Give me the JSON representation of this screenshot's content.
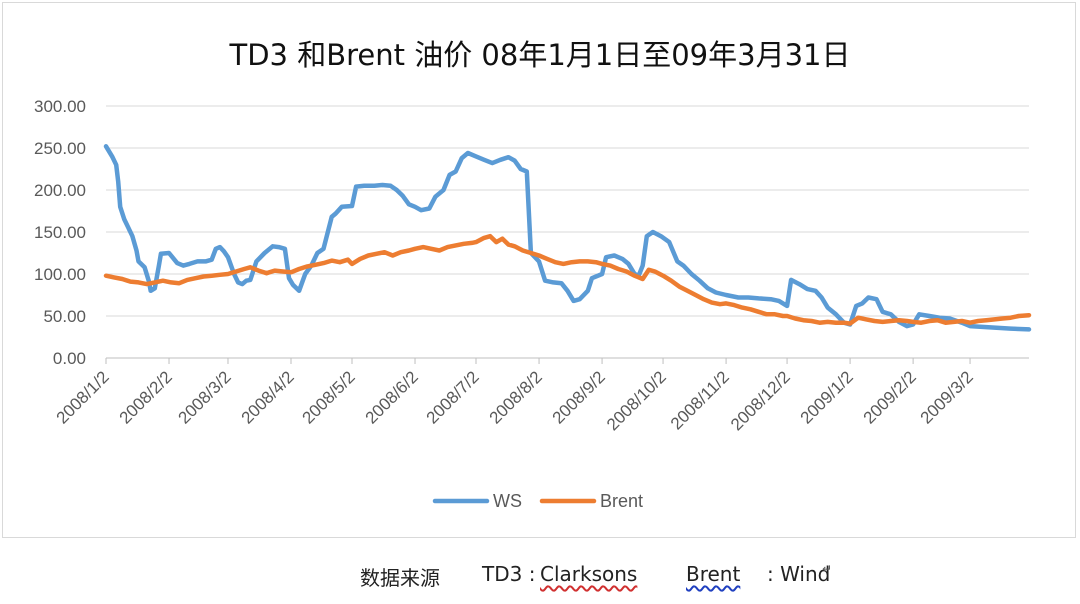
{
  "chart_data": {
    "type": "line",
    "title": "TD3 和Brent 油价 08年1月1日至09年3月31日",
    "ylim": [
      0,
      300
    ],
    "y_ticks": [
      "0.00",
      "50.00",
      "100.00",
      "150.00",
      "200.00",
      "250.00",
      "300.00"
    ],
    "x_range": [
      "2008-01-02",
      "2009-03-31"
    ],
    "x_ticks": [
      {
        "date": "2008-01-02",
        "label": "2008/1/2"
      },
      {
        "date": "2008-02-02",
        "label": "2008/2/2"
      },
      {
        "date": "2008-03-02",
        "label": "2008/3/2"
      },
      {
        "date": "2008-04-02",
        "label": "2008/4/2"
      },
      {
        "date": "2008-05-02",
        "label": "2008/5/2"
      },
      {
        "date": "2008-06-02",
        "label": "2008/6/2"
      },
      {
        "date": "2008-07-02",
        "label": "2008/7/2"
      },
      {
        "date": "2008-08-02",
        "label": "2008/8/2"
      },
      {
        "date": "2008-09-02",
        "label": "2008/9/2"
      },
      {
        "date": "2008-10-02",
        "label": "2008/10/2"
      },
      {
        "date": "2008-11-02",
        "label": "2008/11/2"
      },
      {
        "date": "2008-12-02",
        "label": "2008/12/2"
      },
      {
        "date": "2009-01-02",
        "label": "2009/1/2"
      },
      {
        "date": "2009-02-02",
        "label": "2009/2/2"
      },
      {
        "date": "2009-03-02",
        "label": "2009/3/2"
      }
    ],
    "grid": true,
    "legend_position": "bottom",
    "series": [
      {
        "name": "WS",
        "color": "#5b9bd5",
        "points": [
          [
            "2008-01-02",
            252
          ],
          [
            "2008-01-05",
            240
          ],
          [
            "2008-01-07",
            230
          ],
          [
            "2008-01-08",
            210
          ],
          [
            "2008-01-09",
            180
          ],
          [
            "2008-01-11",
            165
          ],
          [
            "2008-01-13",
            155
          ],
          [
            "2008-01-15",
            145
          ],
          [
            "2008-01-17",
            128
          ],
          [
            "2008-01-18",
            115
          ],
          [
            "2008-01-21",
            108
          ],
          [
            "2008-01-23",
            92
          ],
          [
            "2008-01-24",
            80
          ],
          [
            "2008-01-26",
            83
          ],
          [
            "2008-01-28",
            110
          ],
          [
            "2008-01-29",
            124
          ],
          [
            "2008-02-02",
            125
          ],
          [
            "2008-02-06",
            113
          ],
          [
            "2008-02-09",
            110
          ],
          [
            "2008-02-12",
            112
          ],
          [
            "2008-02-16",
            115
          ],
          [
            "2008-02-20",
            115
          ],
          [
            "2008-02-23",
            117
          ],
          [
            "2008-02-25",
            130
          ],
          [
            "2008-02-27",
            132
          ],
          [
            "2008-02-29",
            127
          ],
          [
            "2008-03-02",
            120
          ],
          [
            "2008-03-05",
            100
          ],
          [
            "2008-03-07",
            90
          ],
          [
            "2008-03-09",
            88
          ],
          [
            "2008-03-11",
            92
          ],
          [
            "2008-03-13",
            93
          ],
          [
            "2008-03-16",
            115
          ],
          [
            "2008-03-20",
            125
          ],
          [
            "2008-03-24",
            133
          ],
          [
            "2008-03-27",
            132
          ],
          [
            "2008-03-30",
            130
          ],
          [
            "2008-04-01",
            95
          ],
          [
            "2008-04-03",
            87
          ],
          [
            "2008-04-06",
            80
          ],
          [
            "2008-04-09",
            100
          ],
          [
            "2008-04-12",
            110
          ],
          [
            "2008-04-15",
            125
          ],
          [
            "2008-04-18",
            130
          ],
          [
            "2008-04-22",
            168
          ],
          [
            "2008-04-24",
            172
          ],
          [
            "2008-04-27",
            180
          ],
          [
            "2008-05-02",
            181
          ],
          [
            "2008-05-04",
            204
          ],
          [
            "2008-05-08",
            205
          ],
          [
            "2008-05-13",
            205
          ],
          [
            "2008-05-17",
            206
          ],
          [
            "2008-05-21",
            205
          ],
          [
            "2008-05-24",
            200
          ],
          [
            "2008-05-27",
            193
          ],
          [
            "2008-05-30",
            183
          ],
          [
            "2008-06-02",
            180
          ],
          [
            "2008-06-05",
            176
          ],
          [
            "2008-06-09",
            178
          ],
          [
            "2008-06-12",
            192
          ],
          [
            "2008-06-16",
            200
          ],
          [
            "2008-06-19",
            218
          ],
          [
            "2008-06-22",
            222
          ],
          [
            "2008-06-25",
            238
          ],
          [
            "2008-06-28",
            244
          ],
          [
            "2008-07-02",
            240
          ],
          [
            "2008-07-06",
            236
          ],
          [
            "2008-07-10",
            232
          ],
          [
            "2008-07-14",
            236
          ],
          [
            "2008-07-18",
            239
          ],
          [
            "2008-07-21",
            235
          ],
          [
            "2008-07-24",
            225
          ],
          [
            "2008-07-27",
            222
          ],
          [
            "2008-07-29",
            125
          ],
          [
            "2008-08-02",
            115
          ],
          [
            "2008-08-05",
            92
          ],
          [
            "2008-08-09",
            90
          ],
          [
            "2008-08-13",
            89
          ],
          [
            "2008-08-16",
            80
          ],
          [
            "2008-08-19",
            68
          ],
          [
            "2008-08-22",
            70
          ],
          [
            "2008-08-26",
            80
          ],
          [
            "2008-08-28",
            95
          ],
          [
            "2008-09-02",
            100
          ],
          [
            "2008-09-04",
            120
          ],
          [
            "2008-09-08",
            122
          ],
          [
            "2008-09-12",
            118
          ],
          [
            "2008-09-15",
            112
          ],
          [
            "2008-09-18",
            100
          ],
          [
            "2008-09-20",
            98
          ],
          [
            "2008-09-22",
            110
          ],
          [
            "2008-09-24",
            145
          ],
          [
            "2008-09-27",
            150
          ],
          [
            "2008-10-01",
            145
          ],
          [
            "2008-10-05",
            138
          ],
          [
            "2008-10-09",
            115
          ],
          [
            "2008-10-12",
            110
          ],
          [
            "2008-10-16",
            100
          ],
          [
            "2008-10-20",
            92
          ],
          [
            "2008-10-24",
            83
          ],
          [
            "2008-10-28",
            78
          ],
          [
            "2008-11-02",
            75
          ],
          [
            "2008-11-08",
            72
          ],
          [
            "2008-11-13",
            72
          ],
          [
            "2008-11-18",
            71
          ],
          [
            "2008-11-24",
            70
          ],
          [
            "2008-11-28",
            68
          ],
          [
            "2008-12-02",
            62
          ],
          [
            "2008-12-04",
            93
          ],
          [
            "2008-12-08",
            88
          ],
          [
            "2008-12-12",
            82
          ],
          [
            "2008-12-16",
            80
          ],
          [
            "2008-12-19",
            72
          ],
          [
            "2008-12-22",
            60
          ],
          [
            "2008-12-26",
            52
          ],
          [
            "2008-12-30",
            42
          ],
          [
            "2009-01-02",
            40
          ],
          [
            "2009-01-05",
            62
          ],
          [
            "2009-01-08",
            65
          ],
          [
            "2009-01-11",
            72
          ],
          [
            "2009-01-15",
            70
          ],
          [
            "2009-01-18",
            55
          ],
          [
            "2009-01-22",
            52
          ],
          [
            "2009-01-26",
            43
          ],
          [
            "2009-01-30",
            38
          ],
          [
            "2009-02-02",
            40
          ],
          [
            "2009-02-05",
            52
          ],
          [
            "2009-02-10",
            50
          ],
          [
            "2009-02-15",
            48
          ],
          [
            "2009-02-20",
            47
          ],
          [
            "2009-02-26",
            42
          ],
          [
            "2009-03-02",
            38
          ],
          [
            "2009-03-08",
            37
          ],
          [
            "2009-03-15",
            36
          ],
          [
            "2009-03-22",
            35
          ],
          [
            "2009-03-31",
            34
          ]
        ]
      },
      {
        "name": "Brent",
        "color": "#ed7d31",
        "points": [
          [
            "2008-01-02",
            98
          ],
          [
            "2008-01-06",
            96
          ],
          [
            "2008-01-10",
            94
          ],
          [
            "2008-01-14",
            91
          ],
          [
            "2008-01-18",
            90
          ],
          [
            "2008-01-22",
            88
          ],
          [
            "2008-01-26",
            90
          ],
          [
            "2008-01-30",
            92
          ],
          [
            "2008-02-03",
            90
          ],
          [
            "2008-02-07",
            89
          ],
          [
            "2008-02-11",
            93
          ],
          [
            "2008-02-15",
            95
          ],
          [
            "2008-02-19",
            97
          ],
          [
            "2008-02-23",
            98
          ],
          [
            "2008-02-27",
            99
          ],
          [
            "2008-03-02",
            100
          ],
          [
            "2008-03-06",
            103
          ],
          [
            "2008-03-10",
            106
          ],
          [
            "2008-03-13",
            108
          ],
          [
            "2008-03-17",
            104
          ],
          [
            "2008-03-21",
            101
          ],
          [
            "2008-03-25",
            104
          ],
          [
            "2008-03-29",
            103
          ],
          [
            "2008-04-02",
            102
          ],
          [
            "2008-04-06",
            106
          ],
          [
            "2008-04-10",
            109
          ],
          [
            "2008-04-14",
            111
          ],
          [
            "2008-04-18",
            113
          ],
          [
            "2008-04-22",
            116
          ],
          [
            "2008-04-26",
            114
          ],
          [
            "2008-04-30",
            117
          ],
          [
            "2008-05-02",
            112
          ],
          [
            "2008-05-06",
            118
          ],
          [
            "2008-05-10",
            122
          ],
          [
            "2008-05-14",
            124
          ],
          [
            "2008-05-18",
            126
          ],
          [
            "2008-05-22",
            122
          ],
          [
            "2008-05-26",
            126
          ],
          [
            "2008-05-30",
            128
          ],
          [
            "2008-06-02",
            130
          ],
          [
            "2008-06-06",
            132
          ],
          [
            "2008-06-10",
            130
          ],
          [
            "2008-06-14",
            128
          ],
          [
            "2008-06-18",
            132
          ],
          [
            "2008-06-22",
            134
          ],
          [
            "2008-06-26",
            136
          ],
          [
            "2008-06-30",
            137
          ],
          [
            "2008-07-02",
            138
          ],
          [
            "2008-07-06",
            143
          ],
          [
            "2008-07-09",
            145
          ],
          [
            "2008-07-12",
            138
          ],
          [
            "2008-07-15",
            142
          ],
          [
            "2008-07-18",
            135
          ],
          [
            "2008-07-21",
            133
          ],
          [
            "2008-07-25",
            128
          ],
          [
            "2008-07-29",
            125
          ],
          [
            "2008-08-02",
            122
          ],
          [
            "2008-08-06",
            118
          ],
          [
            "2008-08-10",
            114
          ],
          [
            "2008-08-14",
            112
          ],
          [
            "2008-08-18",
            114
          ],
          [
            "2008-08-22",
            115
          ],
          [
            "2008-08-26",
            115
          ],
          [
            "2008-08-30",
            114
          ],
          [
            "2008-09-02",
            112
          ],
          [
            "2008-09-06",
            110
          ],
          [
            "2008-09-10",
            106
          ],
          [
            "2008-09-14",
            103
          ],
          [
            "2008-09-18",
            98
          ],
          [
            "2008-09-22",
            94
          ],
          [
            "2008-09-25",
            105
          ],
          [
            "2008-09-28",
            103
          ],
          [
            "2008-10-02",
            98
          ],
          [
            "2008-10-06",
            92
          ],
          [
            "2008-10-10",
            85
          ],
          [
            "2008-10-14",
            80
          ],
          [
            "2008-10-18",
            75
          ],
          [
            "2008-10-22",
            70
          ],
          [
            "2008-10-26",
            66
          ],
          [
            "2008-10-30",
            64
          ],
          [
            "2008-11-02",
            65
          ],
          [
            "2008-11-06",
            63
          ],
          [
            "2008-11-10",
            60
          ],
          [
            "2008-11-14",
            58
          ],
          [
            "2008-11-18",
            55
          ],
          [
            "2008-11-22",
            52
          ],
          [
            "2008-11-26",
            52
          ],
          [
            "2008-11-30",
            50
          ],
          [
            "2008-12-02",
            50
          ],
          [
            "2008-12-06",
            47
          ],
          [
            "2008-12-10",
            45
          ],
          [
            "2008-12-14",
            44
          ],
          [
            "2008-12-18",
            42
          ],
          [
            "2008-12-22",
            43
          ],
          [
            "2008-12-26",
            42
          ],
          [
            "2008-12-30",
            42
          ],
          [
            "2009-01-02",
            41
          ],
          [
            "2009-01-06",
            48
          ],
          [
            "2009-01-10",
            46
          ],
          [
            "2009-01-14",
            44
          ],
          [
            "2009-01-18",
            43
          ],
          [
            "2009-01-22",
            44
          ],
          [
            "2009-01-26",
            45
          ],
          [
            "2009-01-30",
            44
          ],
          [
            "2009-02-02",
            43
          ],
          [
            "2009-02-06",
            42
          ],
          [
            "2009-02-10",
            44
          ],
          [
            "2009-02-14",
            45
          ],
          [
            "2009-02-18",
            42
          ],
          [
            "2009-02-22",
            43
          ],
          [
            "2009-02-26",
            44
          ],
          [
            "2009-03-02",
            42
          ],
          [
            "2009-03-06",
            44
          ],
          [
            "2009-03-10",
            45
          ],
          [
            "2009-03-14",
            46
          ],
          [
            "2009-03-18",
            47
          ],
          [
            "2009-03-22",
            48
          ],
          [
            "2009-03-26",
            50
          ],
          [
            "2009-03-31",
            51
          ]
        ]
      }
    ]
  },
  "caption": {
    "source_label": "数据来源",
    "td3_label": "TD3 :",
    "td3_source": "Clarksons",
    "brent_label": "Brent",
    "brent_source": ": Wind",
    "end_mark": "↵"
  }
}
